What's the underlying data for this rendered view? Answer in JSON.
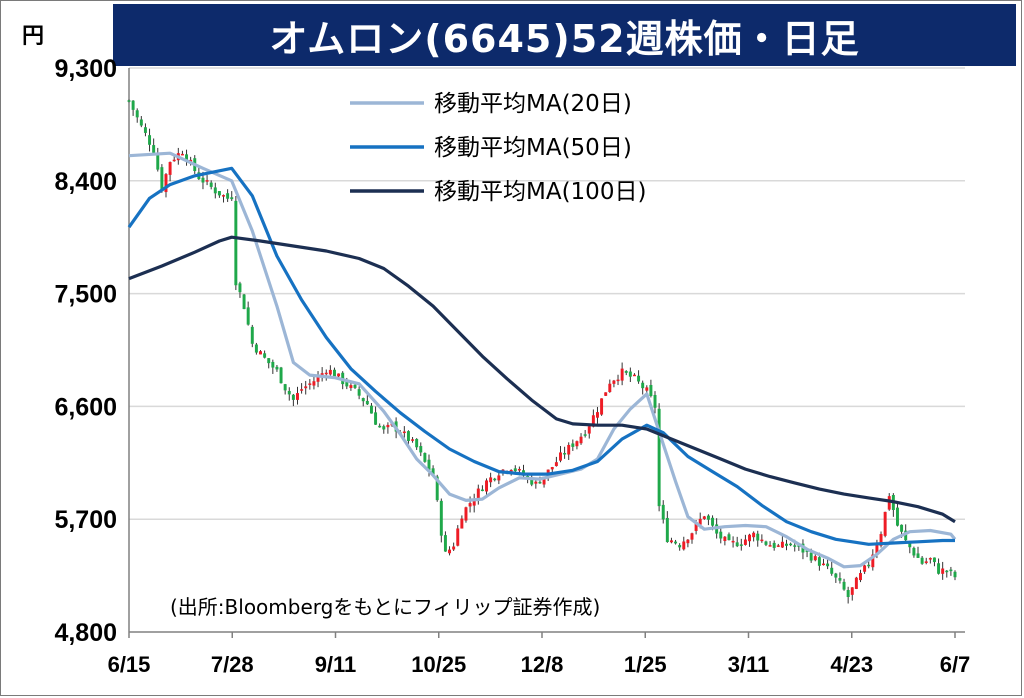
{
  "title": "オムロン(6645)52週株価・日足",
  "unit_label": "円",
  "source": "(出所:Bloombergをもとにフィリップ証券作成)",
  "colors": {
    "title_bg": "#0d2a6b",
    "up": "#ee1c25",
    "down": "#1fa84a",
    "ma20": "#9cb6d6",
    "ma50": "#1672c2",
    "ma100": "#1c2f52",
    "grid": "#d9d9d9"
  },
  "chart_data": {
    "type": "candlestick",
    "title": "オムロン(6645)52週株価・日足",
    "ylim": [
      4800,
      9300
    ],
    "yticks": [
      9300,
      8400,
      7500,
      6600,
      5700,
      4800
    ],
    "ytick_labels": [
      "9,300",
      "8,400",
      "7,500",
      "6,600",
      "5,700",
      "4,800"
    ],
    "xtick_labels": [
      "6/15",
      "7/28",
      "9/11",
      "10/25",
      "12/8",
      "1/25",
      "3/11",
      "4/23",
      "6/7"
    ],
    "grid": true,
    "legend": [
      "移動平均MA(20日)",
      "移動平均MA(50日)",
      "移動平均MA(100日)"
    ],
    "legend_position": "top-center",
    "close_anchors": [
      [
        0,
        9040
      ],
      [
        3,
        8830
      ],
      [
        6,
        8650
      ],
      [
        8,
        8340
      ],
      [
        10,
        8560
      ],
      [
        13,
        8640
      ],
      [
        17,
        8430
      ],
      [
        21,
        8320
      ],
      [
        24,
        8260
      ],
      [
        25,
        8280
      ],
      [
        26,
        7600
      ],
      [
        28,
        7400
      ],
      [
        30,
        7100
      ],
      [
        33,
        6980
      ],
      [
        36,
        6880
      ],
      [
        38,
        6750
      ],
      [
        40,
        6650
      ],
      [
        42,
        6740
      ],
      [
        44,
        6780
      ],
      [
        46,
        6830
      ],
      [
        48,
        6900
      ],
      [
        50,
        6860
      ],
      [
        52,
        6800
      ],
      [
        55,
        6720
      ],
      [
        58,
        6620
      ],
      [
        60,
        6480
      ],
      [
        62,
        6400
      ],
      [
        64,
        6450
      ],
      [
        66,
        6400
      ],
      [
        68,
        6340
      ],
      [
        70,
        6270
      ],
      [
        72,
        6150
      ],
      [
        74,
        6050
      ],
      [
        76,
        5600
      ],
      [
        77,
        5420
      ],
      [
        79,
        5500
      ],
      [
        81,
        5740
      ],
      [
        84,
        5880
      ],
      [
        87,
        6000
      ],
      [
        90,
        6080
      ],
      [
        93,
        6120
      ],
      [
        96,
        6050
      ],
      [
        99,
        5980
      ],
      [
        102,
        6080
      ],
      [
        105,
        6200
      ],
      [
        108,
        6300
      ],
      [
        111,
        6400
      ],
      [
        114,
        6580
      ],
      [
        117,
        6800
      ],
      [
        120,
        6870
      ],
      [
        123,
        6820
      ],
      [
        126,
        6720
      ],
      [
        128,
        6600
      ],
      [
        129,
        5800
      ],
      [
        131,
        5550
      ],
      [
        134,
        5500
      ],
      [
        137,
        5600
      ],
      [
        140,
        5740
      ],
      [
        143,
        5580
      ],
      [
        146,
        5500
      ],
      [
        149,
        5520
      ],
      [
        152,
        5580
      ],
      [
        155,
        5510
      ],
      [
        158,
        5480
      ],
      [
        161,
        5500
      ],
      [
        164,
        5450
      ],
      [
        167,
        5380
      ],
      [
        170,
        5300
      ],
      [
        173,
        5180
      ],
      [
        175,
        5080
      ],
      [
        177,
        5200
      ],
      [
        180,
        5350
      ],
      [
        183,
        5600
      ],
      [
        185,
        5900
      ],
      [
        187,
        5650
      ],
      [
        189,
        5520
      ],
      [
        191,
        5430
      ],
      [
        193,
        5350
      ],
      [
        195,
        5380
      ],
      [
        197,
        5290
      ],
      [
        199,
        5290
      ],
      [
        201,
        5240
      ]
    ],
    "series": [
      {
        "name": "移動平均MA(20日)",
        "points": [
          [
            0,
            8600
          ],
          [
            10,
            8620
          ],
          [
            18,
            8500
          ],
          [
            25,
            8400
          ],
          [
            30,
            8000
          ],
          [
            36,
            7400
          ],
          [
            40,
            6950
          ],
          [
            44,
            6850
          ],
          [
            50,
            6830
          ],
          [
            56,
            6780
          ],
          [
            62,
            6560
          ],
          [
            66,
            6380
          ],
          [
            70,
            6180
          ],
          [
            74,
            6050
          ],
          [
            78,
            5900
          ],
          [
            82,
            5850
          ],
          [
            86,
            5860
          ],
          [
            90,
            5950
          ],
          [
            95,
            6030
          ],
          [
            100,
            6020
          ],
          [
            105,
            6060
          ],
          [
            110,
            6100
          ],
          [
            114,
            6180
          ],
          [
            118,
            6420
          ],
          [
            122,
            6580
          ],
          [
            126,
            6700
          ],
          [
            130,
            6300
          ],
          [
            133,
            6000
          ],
          [
            136,
            5720
          ],
          [
            140,
            5620
          ],
          [
            145,
            5640
          ],
          [
            150,
            5650
          ],
          [
            155,
            5640
          ],
          [
            160,
            5560
          ],
          [
            165,
            5460
          ],
          [
            170,
            5390
          ],
          [
            174,
            5320
          ],
          [
            178,
            5330
          ],
          [
            182,
            5420
          ],
          [
            186,
            5540
          ],
          [
            190,
            5600
          ],
          [
            195,
            5610
          ],
          [
            200,
            5580
          ],
          [
            201,
            5540
          ]
        ]
      },
      {
        "name": "移動平均MA(50日)",
        "points": [
          [
            0,
            8030
          ],
          [
            5,
            8260
          ],
          [
            10,
            8370
          ],
          [
            16,
            8440
          ],
          [
            22,
            8480
          ],
          [
            25,
            8500
          ],
          [
            30,
            8280
          ],
          [
            36,
            7800
          ],
          [
            42,
            7450
          ],
          [
            48,
            7150
          ],
          [
            54,
            6900
          ],
          [
            60,
            6720
          ],
          [
            66,
            6550
          ],
          [
            72,
            6400
          ],
          [
            78,
            6260
          ],
          [
            84,
            6160
          ],
          [
            90,
            6080
          ],
          [
            96,
            6060
          ],
          [
            102,
            6060
          ],
          [
            108,
            6090
          ],
          [
            114,
            6160
          ],
          [
            120,
            6340
          ],
          [
            126,
            6450
          ],
          [
            130,
            6390
          ],
          [
            136,
            6200
          ],
          [
            142,
            6080
          ],
          [
            148,
            5960
          ],
          [
            154,
            5810
          ],
          [
            160,
            5680
          ],
          [
            166,
            5600
          ],
          [
            172,
            5540
          ],
          [
            176,
            5520
          ],
          [
            180,
            5500
          ],
          [
            186,
            5510
          ],
          [
            192,
            5520
          ],
          [
            198,
            5530
          ],
          [
            201,
            5530
          ]
        ]
      },
      {
        "name": "移動平均MA(100日)",
        "points": [
          [
            0,
            7620
          ],
          [
            8,
            7720
          ],
          [
            16,
            7830
          ],
          [
            22,
            7920
          ],
          [
            25,
            7950
          ],
          [
            32,
            7920
          ],
          [
            40,
            7880
          ],
          [
            48,
            7840
          ],
          [
            56,
            7780
          ],
          [
            62,
            7700
          ],
          [
            68,
            7560
          ],
          [
            74,
            7400
          ],
          [
            80,
            7200
          ],
          [
            86,
            7000
          ],
          [
            92,
            6820
          ],
          [
            98,
            6650
          ],
          [
            104,
            6500
          ],
          [
            108,
            6460
          ],
          [
            114,
            6450
          ],
          [
            120,
            6450
          ],
          [
            126,
            6420
          ],
          [
            132,
            6340
          ],
          [
            138,
            6260
          ],
          [
            144,
            6180
          ],
          [
            150,
            6100
          ],
          [
            156,
            6040
          ],
          [
            162,
            5990
          ],
          [
            168,
            5940
          ],
          [
            174,
            5900
          ],
          [
            180,
            5870
          ],
          [
            186,
            5840
          ],
          [
            192,
            5800
          ],
          [
            198,
            5740
          ],
          [
            201,
            5680
          ]
        ]
      }
    ]
  }
}
